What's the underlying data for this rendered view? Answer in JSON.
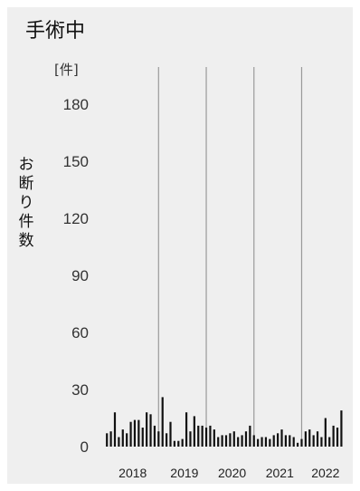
{
  "chart_data": {
    "type": "bar",
    "title": "手術中",
    "ylabel": "お断り件数",
    "unit_label": "[件]",
    "ylim": [
      0,
      190
    ],
    "yticks": [
      0,
      30,
      60,
      90,
      120,
      150,
      180
    ],
    "grid": false,
    "year_labels": [
      "2018",
      "2019",
      "2020",
      "2021",
      "2022"
    ],
    "year_dividers": [
      "2018-12",
      "2019-12",
      "2020-12",
      "2021-12"
    ],
    "x_start": "2017-11",
    "x_end": "2022-11",
    "bar_color": "#111111",
    "divider_color": "#9a9a9a",
    "series": [
      {
        "values": [
          7,
          8,
          18,
          5,
          9,
          7,
          13,
          14,
          14,
          10,
          18,
          17,
          11,
          8,
          26,
          7,
          13,
          3,
          3,
          4,
          18,
          8,
          16,
          11,
          11,
          10,
          11,
          9,
          5,
          6,
          6,
          7,
          8,
          5,
          6,
          8,
          11,
          6,
          4,
          5,
          5,
          4,
          6,
          7,
          9,
          6,
          6,
          5,
          2,
          4,
          8,
          9,
          6,
          8,
          5,
          15,
          5,
          11,
          10,
          19
        ]
      }
    ]
  }
}
